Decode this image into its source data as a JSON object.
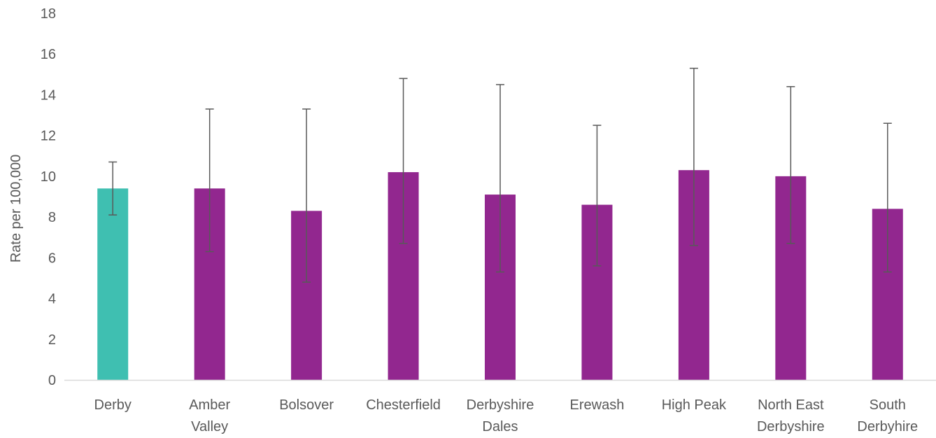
{
  "chart_data": {
    "type": "bar",
    "title": "",
    "xlabel": "",
    "ylabel": "Rate per 100,000",
    "ylim": [
      0,
      18
    ],
    "yticks": [
      0,
      2,
      4,
      6,
      8,
      10,
      12,
      14,
      16,
      18
    ],
    "grid": false,
    "legend": "none",
    "categories": [
      [
        "Derby"
      ],
      [
        "Amber",
        "Valley"
      ],
      [
        "Bolsover"
      ],
      [
        "Chesterfield"
      ],
      [
        "Derbyshire",
        "Dales"
      ],
      [
        "Erewash"
      ],
      [
        "High Peak"
      ],
      [
        "North East",
        "Derbyshire"
      ],
      [
        "South",
        "Derbyhire"
      ]
    ],
    "values": [
      9.4,
      9.4,
      8.3,
      10.2,
      9.1,
      8.6,
      10.3,
      10.0,
      8.4
    ],
    "error_low": [
      8.1,
      6.3,
      4.8,
      6.7,
      5.3,
      5.6,
      6.6,
      6.7,
      5.3
    ],
    "error_high": [
      10.7,
      13.3,
      13.3,
      14.8,
      14.5,
      12.5,
      15.3,
      14.4,
      12.6
    ],
    "colors": [
      "#3FBFB1",
      "#92278F",
      "#92278F",
      "#92278F",
      "#92278F",
      "#92278F",
      "#92278F",
      "#92278F",
      "#92278F"
    ],
    "axis_color": "#D9D9D9",
    "errorbar_color": "#595959"
  }
}
